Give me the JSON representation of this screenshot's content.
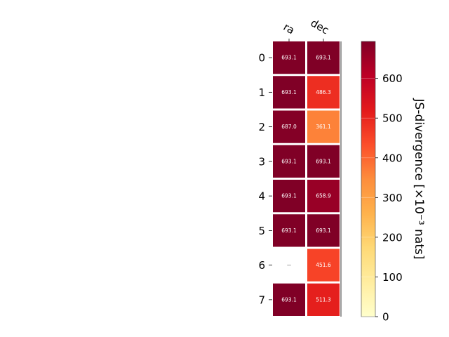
{
  "chart_data": {
    "type": "heatmap",
    "columns": [
      "ra",
      "dec"
    ],
    "rows": [
      "0",
      "1",
      "2",
      "3",
      "4",
      "5",
      "6",
      "7"
    ],
    "values": [
      [
        693.1,
        693.1
      ],
      [
        693.1,
        486.3
      ],
      [
        687.0,
        361.1
      ],
      [
        693.1,
        693.1
      ],
      [
        693.1,
        658.9
      ],
      [
        693.1,
        693.1
      ],
      [
        null,
        451.6
      ],
      [
        693.1,
        511.3
      ]
    ],
    "cell_labels": [
      [
        "693.1",
        "693.1"
      ],
      [
        "693.1",
        "486.3"
      ],
      [
        "687.0",
        "361.1"
      ],
      [
        "693.1",
        "693.1"
      ],
      [
        "693.1",
        "658.9"
      ],
      [
        "693.1",
        "693.1"
      ],
      [
        "--",
        "451.6"
      ],
      [
        "693.1",
        "511.3"
      ]
    ],
    "colorbar": {
      "label": "JS-divergence [×10⁻³ nats]",
      "min": 0,
      "max": 693.1,
      "ticks": [
        0,
        100,
        200,
        300,
        400,
        500,
        600
      ],
      "colormap": "YlOrRd",
      "stops": [
        "#ffffcc",
        "#ffeda0",
        "#fed976",
        "#feb24c",
        "#fd8d3c",
        "#fc4e2a",
        "#e31a1c",
        "#bd0026",
        "#800026"
      ]
    },
    "missing_color": "#ffffff"
  }
}
